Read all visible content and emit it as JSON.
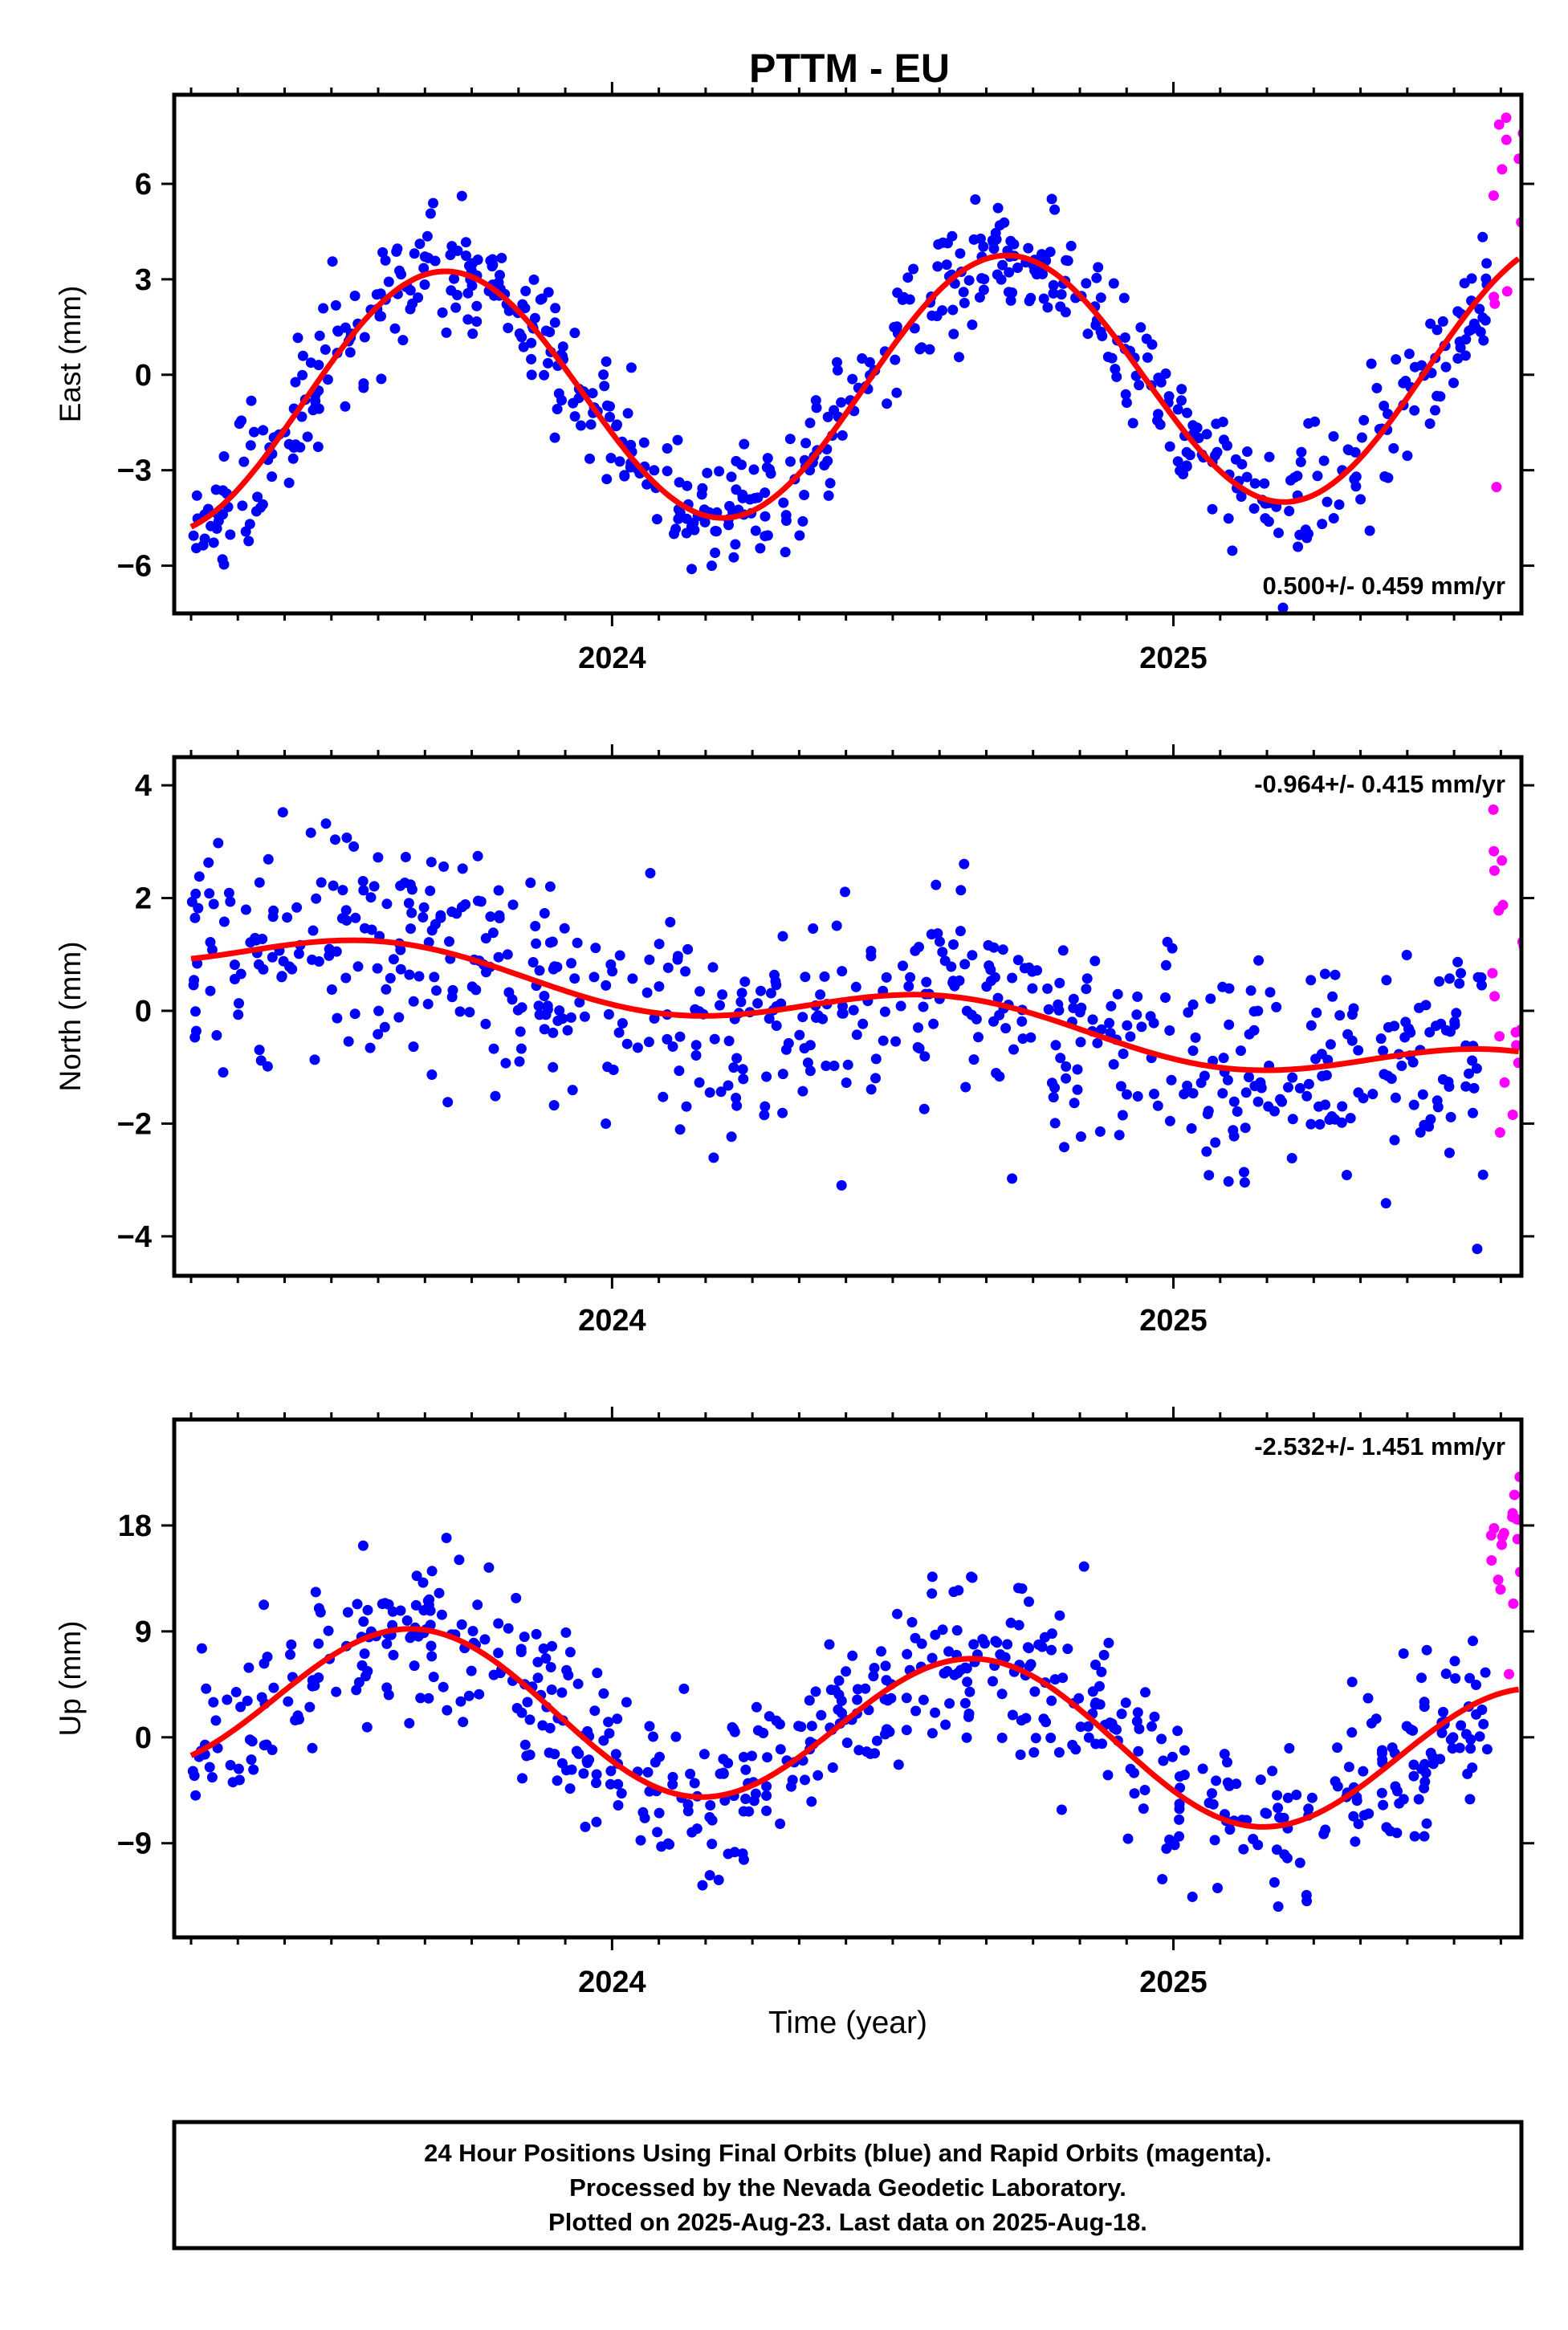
{
  "chart_data": [
    {
      "type": "scatter",
      "panel": "east",
      "title": "PTTM - EU",
      "ylabel": "East (mm)",
      "xlabel": "",
      "ylim": [
        -7.5,
        8.8
      ],
      "xlim": [
        2023.22,
        2025.62
      ],
      "yticks": [
        -6,
        -3,
        0,
        3,
        6
      ],
      "xticks": [
        2024,
        2025
      ],
      "xtick_labels": [
        "2024",
        "2025"
      ],
      "rate_label": "0.500+/- 0.459 mm/yr",
      "rate_position": "bottom-right",
      "fit_curve": {
        "mean": -0.4,
        "trend": 0.5,
        "amp": 4.0,
        "phase_year": 2023.45
      },
      "series": [
        {
          "name": "Final Orbits",
          "color": "#0000ff",
          "x_start": 2023.25,
          "x_end": 2025.56,
          "noise": 0.95
        },
        {
          "name": "Rapid Orbits",
          "color": "#ff00ff",
          "x_start": 2025.565,
          "x_end": 2025.625,
          "noise": 2.8,
          "offset": 2.7
        }
      ],
      "fit_color": "#ff0000"
    },
    {
      "type": "scatter",
      "panel": "north",
      "title": "",
      "ylabel": "North (mm)",
      "xlabel": "",
      "ylim": [
        -4.7,
        4.5
      ],
      "xlim": [
        2023.22,
        2025.62
      ],
      "yticks": [
        -4,
        -2,
        0,
        2,
        4
      ],
      "xticks": [
        2024,
        2025
      ],
      "xtick_labels": [
        "2024",
        "2025"
      ],
      "rate_label": "-0.964+/- 0.415 mm/yr",
      "rate_position": "top-right",
      "fit_curve": {
        "mean": 0.05,
        "trend": -0.964,
        "amp": 0.4,
        "phase_year": 2023.35
      },
      "series": [
        {
          "name": "Final Orbits",
          "color": "#0000ff",
          "x_start": 2023.25,
          "x_end": 2025.56,
          "noise": 1.0
        },
        {
          "name": "Rapid Orbits",
          "color": "#ff00ff",
          "x_start": 2025.565,
          "x_end": 2025.625,
          "noise": 1.6,
          "offset": 0.9
        }
      ],
      "fit_color": "#ff0000"
    },
    {
      "type": "scatter",
      "panel": "up",
      "title": "",
      "ylabel": "Up (mm)",
      "xlabel": "Time (year)",
      "ylim": [
        -17,
        27
      ],
      "xlim": [
        2023.22,
        2025.62
      ],
      "yticks": [
        -9,
        0,
        9,
        18
      ],
      "xticks": [
        2024,
        2025
      ],
      "xtick_labels": [
        "2024",
        "2025"
      ],
      "rate_label": "-2.532+/- 1.451 mm/yr",
      "rate_position": "top-right",
      "fit_curve": {
        "mean": 0.8,
        "trend": -2.532,
        "amp": 6.5,
        "phase_year": 2023.4
      },
      "series": [
        {
          "name": "Final Orbits",
          "color": "#0000ff",
          "x_start": 2023.25,
          "x_end": 2025.56,
          "noise": 3.6
        },
        {
          "name": "Rapid Orbits",
          "color": "#ff00ff",
          "x_start": 2025.565,
          "x_end": 2025.625,
          "noise": 5.0,
          "offset": 11
        }
      ],
      "fit_color": "#ff0000"
    }
  ],
  "footer": {
    "line1": "24 Hour Positions Using Final Orbits (blue) and Rapid Orbits (magenta).",
    "line2": "Processed by the Nevada Geodetic Laboratory.",
    "line3": "Plotted on 2025-Aug-23. Last data on 2025-Aug-18."
  }
}
